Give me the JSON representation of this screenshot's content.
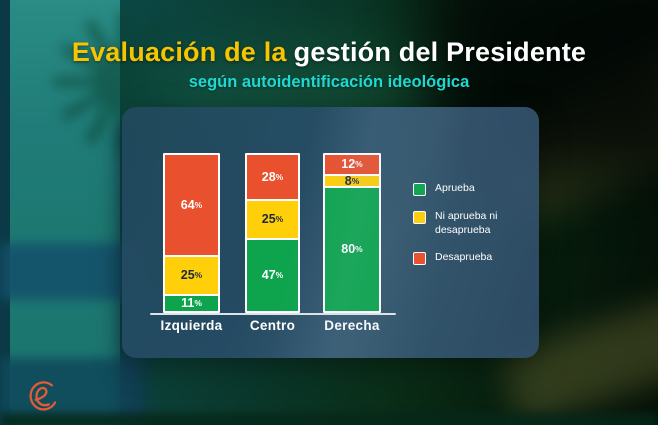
{
  "header": {
    "title_highlight": "Evaluación de la",
    "title_rest": "gestión del Presidente",
    "title_highlight_color": "#F6C500",
    "title_rest_color": "#FFFFFF",
    "subtitle": "según autoidentificación ideológica",
    "subtitle_color": "#1ED9D2"
  },
  "chart_data": {
    "type": "bar",
    "subtype": "stacked-vertical",
    "categories": [
      "Izquierda",
      "Centro",
      "Derecha"
    ],
    "series": [
      {
        "name": "Aprueba",
        "color": "#0EA44E",
        "label_color": "#FFFFFF",
        "values": [
          11,
          47,
          80
        ]
      },
      {
        "name": "Ni aprueba ni\ndesaprueba",
        "color": "#FFCF0A",
        "label_color": "#1C2B3D",
        "values": [
          25,
          25,
          8
        ]
      },
      {
        "name": "Desaprueba",
        "color": "#E9502D",
        "label_color": "#FFFFFF",
        "values": [
          64,
          28,
          12
        ]
      }
    ],
    "value_suffix": "%",
    "ylim": [
      0,
      100
    ],
    "grid": false,
    "legend_position": "right",
    "stack_order_top_to_bottom": [
      "Desaprueba",
      "Ni aprueba ni desaprueba",
      "Aprueba"
    ],
    "bar_border_color": "#FFFFFF",
    "category_label_color": "#FFFFFF"
  },
  "logo": {
    "letter": "e",
    "color": "#E45B35"
  }
}
